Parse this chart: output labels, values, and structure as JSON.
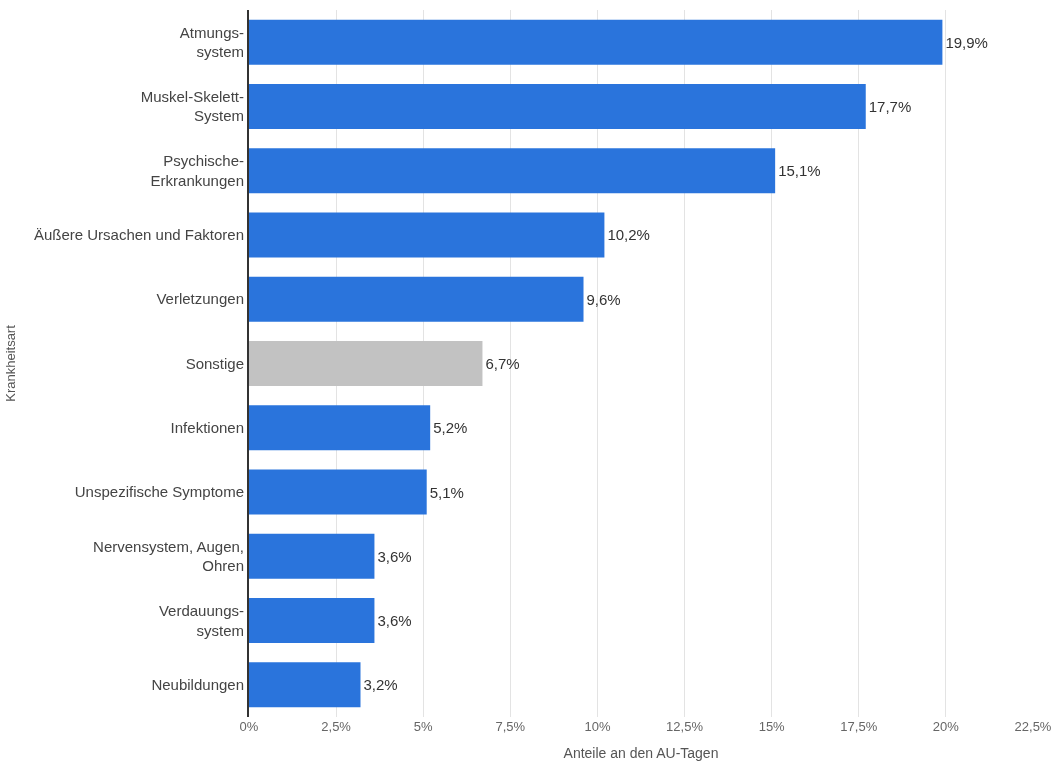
{
  "chart_data": {
    "type": "bar",
    "orientation": "horizontal",
    "xlabel": "Anteile an den AU-Tagen",
    "ylabel": "Krankheitsart",
    "categories": [
      "Atmungs-\nsystem",
      "Muskel-Skelett-\nSystem",
      "Psychische-\nErkrankungen",
      "Äußere Ursachen und Faktoren",
      "Verletzungen",
      "Sonstige",
      "Infektionen",
      "Unspezifische Symptome",
      "Nervensystem, Augen,\nOhren",
      "Verdauungs-\nsystem",
      "Neubildungen"
    ],
    "values": [
      19.9,
      17.7,
      15.1,
      10.2,
      9.6,
      6.7,
      5.2,
      5.1,
      3.6,
      3.6,
      3.2
    ],
    "colors": [
      "#2a74dc",
      "#2a74dc",
      "#2a74dc",
      "#2a74dc",
      "#2a74dc",
      "#c2c2c2",
      "#2a74dc",
      "#2a74dc",
      "#2a74dc",
      "#2a74dc",
      "#2a74dc"
    ],
    "value_labels": [
      "19,9%",
      "17,7%",
      "15,1%",
      "10,2%",
      "9,6%",
      "6,7%",
      "5,2%",
      "5,1%",
      "3,6%",
      "3,6%",
      "3,2%"
    ],
    "xlim": [
      0,
      22.5
    ],
    "xticks": [
      {
        "value": 0,
        "label": "0%"
      },
      {
        "value": 2.5,
        "label": "2,5%"
      },
      {
        "value": 5,
        "label": "5%"
      },
      {
        "value": 7.5,
        "label": "7,5%"
      },
      {
        "value": 10,
        "label": "10%"
      },
      {
        "value": 12.5,
        "label": "12,5%"
      },
      {
        "value": 15,
        "label": "15%"
      },
      {
        "value": 17.5,
        "label": "17,5%"
      },
      {
        "value": 20,
        "label": "20%"
      },
      {
        "value": 22.5,
        "label": "22,5%"
      }
    ],
    "grid": "x"
  }
}
